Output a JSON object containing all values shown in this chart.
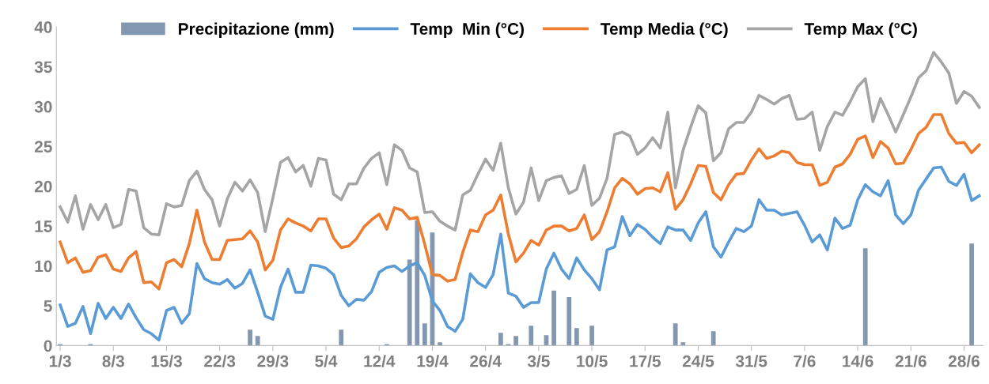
{
  "chart_data": {
    "type": "line",
    "categories": [
      "1/3",
      null,
      null,
      null,
      null,
      null,
      null,
      "8/3",
      null,
      null,
      null,
      null,
      null,
      null,
      "15/3",
      null,
      null,
      null,
      null,
      null,
      null,
      "22/3",
      null,
      null,
      null,
      null,
      null,
      null,
      "29/3",
      null,
      null,
      null,
      null,
      null,
      null,
      "5/4",
      null,
      null,
      null,
      null,
      null,
      null,
      "12/4",
      null,
      null,
      null,
      null,
      null,
      null,
      "19/4",
      null,
      null,
      null,
      null,
      null,
      null,
      "26/4",
      null,
      null,
      null,
      null,
      null,
      null,
      "3/5",
      null,
      null,
      null,
      null,
      null,
      null,
      "10/5",
      null,
      null,
      null,
      null,
      null,
      null,
      "17/5",
      null,
      null,
      null,
      null,
      null,
      null,
      "24/5",
      null,
      null,
      null,
      null,
      null,
      null,
      "31/5",
      null,
      null,
      null,
      null,
      null,
      null,
      "7/6",
      null,
      null,
      null,
      null,
      null,
      null,
      "14/6",
      null,
      null,
      null,
      null,
      null,
      null,
      "21/6",
      null,
      null,
      null,
      null,
      null,
      null,
      "28/6",
      null,
      null
    ],
    "series": [
      {
        "name": "Precipitazione (mm)",
        "type": "bar",
        "color": "#8497b0",
        "values": [
          0.2,
          0,
          0,
          0,
          0.2,
          0,
          0,
          0,
          0,
          0,
          0,
          0,
          0,
          0,
          0,
          0,
          0,
          0,
          0,
          0,
          0,
          0,
          0,
          0,
          0,
          2.0,
          1.2,
          0,
          0,
          0,
          0,
          0,
          0,
          0,
          0,
          0,
          0,
          2.0,
          0,
          0,
          0,
          0,
          0,
          0.2,
          0,
          0,
          10.8,
          15.7,
          2.8,
          14.2,
          0.4,
          0,
          0,
          0,
          0,
          0,
          0,
          0,
          1.6,
          0.2,
          1.2,
          0,
          2.5,
          0,
          1.3,
          6.9,
          0,
          6.1,
          2.2,
          0,
          2.5,
          0,
          0,
          0,
          0,
          0,
          0,
          0,
          0,
          0,
          0,
          2.8,
          0.4,
          0,
          0,
          0,
          1.8,
          0,
          0,
          0,
          0,
          0,
          0,
          0,
          0,
          0,
          0,
          0,
          0,
          0,
          0,
          0,
          0,
          0,
          0,
          0,
          12.2,
          0,
          0,
          0,
          0,
          0,
          0,
          0,
          0,
          0,
          0,
          0,
          0,
          0,
          12.8,
          0
        ]
      },
      {
        "name": "Temp  Min (°C)",
        "color": "#5b9bd5",
        "values": [
          5.1,
          2.4,
          2.8,
          4.9,
          1.5,
          5.3,
          3.4,
          4.8,
          3.4,
          5.2,
          3.5,
          2.0,
          1.5,
          0.7,
          4.4,
          4.8,
          2.8,
          4.0,
          10.3,
          8.4,
          7.9,
          7.7,
          8.3,
          7.2,
          7.8,
          9.5,
          6.7,
          3.7,
          3.3,
          7.3,
          9.6,
          6.7,
          6.7,
          10.1,
          10.0,
          9.7,
          8.9,
          6.3,
          5.0,
          5.8,
          5.7,
          6.8,
          9.2,
          9.8,
          10.0,
          9.3,
          10.0,
          10.4,
          8.8,
          5.6,
          4.4,
          2.4,
          1.8,
          3.3,
          9.0,
          7.9,
          7.3,
          8.9,
          14.0,
          6.6,
          6.2,
          4.8,
          5.4,
          5.4,
          9.6,
          11.6,
          9.6,
          8.4,
          11.0,
          9.5,
          8.4,
          7.0,
          12.0,
          12.4,
          16.2,
          13.8,
          15.2,
          14.6,
          13.6,
          12.8,
          14.9,
          14.5,
          14.5,
          13.2,
          15.4,
          16.8,
          12.4,
          11.1,
          13.0,
          14.7,
          14.3,
          15.0,
          18.3,
          17.0,
          17.0,
          16.4,
          16.6,
          16.8,
          15.1,
          13.0,
          13.9,
          12.0,
          16.0,
          14.7,
          15.1,
          18.3,
          20.2,
          19.3,
          18.8,
          20.7,
          16.4,
          15.3,
          16.4,
          19.5,
          20.9,
          22.3,
          22.4,
          20.6,
          20.1,
          21.5,
          18.2,
          18.8
        ]
      },
      {
        "name": "Temp Media (°C)",
        "color": "#ed7d31",
        "values": [
          13.0,
          10.4,
          11.0,
          9.2,
          9.4,
          11.1,
          11.4,
          9.6,
          9.3,
          11.0,
          11.8,
          7.9,
          8.0,
          7.1,
          10.4,
          10.8,
          9.9,
          12.8,
          17.0,
          13.0,
          10.8,
          10.8,
          13.2,
          13.3,
          13.4,
          14.4,
          13.0,
          9.5,
          10.7,
          14.5,
          15.9,
          15.4,
          15.0,
          14.4,
          15.9,
          15.9,
          13.5,
          12.3,
          12.5,
          13.4,
          14.9,
          15.8,
          16.5,
          14.6,
          17.3,
          17.0,
          15.9,
          16.1,
          12.7,
          8.9,
          8.8,
          8.1,
          8.3,
          11.7,
          14.5,
          14.3,
          16.4,
          17.0,
          18.9,
          14.0,
          10.5,
          11.6,
          13.2,
          12.6,
          14.5,
          15.0,
          15.0,
          14.4,
          14.7,
          16.4,
          13.3,
          14.3,
          16.8,
          19.8,
          21.0,
          20.3,
          19.0,
          19.7,
          19.8,
          19.3,
          21.7,
          17.1,
          18.3,
          20.3,
          22.6,
          22.5,
          19.2,
          18.3,
          20.2,
          21.5,
          21.6,
          23.3,
          24.7,
          23.5,
          23.8,
          24.4,
          24.2,
          23.0,
          22.7,
          22.7,
          20.1,
          20.5,
          22.4,
          22.8,
          24.0,
          25.9,
          26.3,
          23.6,
          25.6,
          24.8,
          22.8,
          22.9,
          24.6,
          26.6,
          27.4,
          29.0,
          29.0,
          26.6,
          25.4,
          25.5,
          24.2,
          25.2
        ]
      },
      {
        "name": "Temp Max (°C)",
        "color": "#a5a5a5",
        "values": [
          17.4,
          15.5,
          18.8,
          14.6,
          17.7,
          15.8,
          17.7,
          14.8,
          15.2,
          19.6,
          19.4,
          14.8,
          14.0,
          13.9,
          17.8,
          17.4,
          17.6,
          20.7,
          21.9,
          19.6,
          18.3,
          15.0,
          18.4,
          20.5,
          19.4,
          20.8,
          19.2,
          14.3,
          18.5,
          23.0,
          23.6,
          21.8,
          22.6,
          20.0,
          23.5,
          23.3,
          19.0,
          18.3,
          20.3,
          20.3,
          22.3,
          23.5,
          24.2,
          20.2,
          25.2,
          24.5,
          22.3,
          21.8,
          16.7,
          16.8,
          15.6,
          15.0,
          14.5,
          18.9,
          19.5,
          21.5,
          23.4,
          22.0,
          25.4,
          19.8,
          16.5,
          18.0,
          22.3,
          18.2,
          20.7,
          21.1,
          21.3,
          19.1,
          19.6,
          22.6,
          17.6,
          18.5,
          21.0,
          26.5,
          26.8,
          26.3,
          24.0,
          24.8,
          26.1,
          24.8,
          29.3,
          19.8,
          24.5,
          27.4,
          30.1,
          29.2,
          23.2,
          24.2,
          27.2,
          28.0,
          28.0,
          29.3,
          31.4,
          30.9,
          30.3,
          31.0,
          31.4,
          28.4,
          28.5,
          29.3,
          24.5,
          27.5,
          29.3,
          28.9,
          30.6,
          32.5,
          33.5,
          28.1,
          31.0,
          29.0,
          26.8,
          29.0,
          31.2,
          33.6,
          34.5,
          36.8,
          35.6,
          34.2,
          30.4,
          31.9,
          31.3,
          29.9
        ]
      }
    ],
    "ylim": [
      0,
      40
    ],
    "yticks": [
      0,
      5,
      10,
      15,
      20,
      25,
      30,
      35,
      40
    ],
    "grid": false,
    "legend": "top"
  }
}
